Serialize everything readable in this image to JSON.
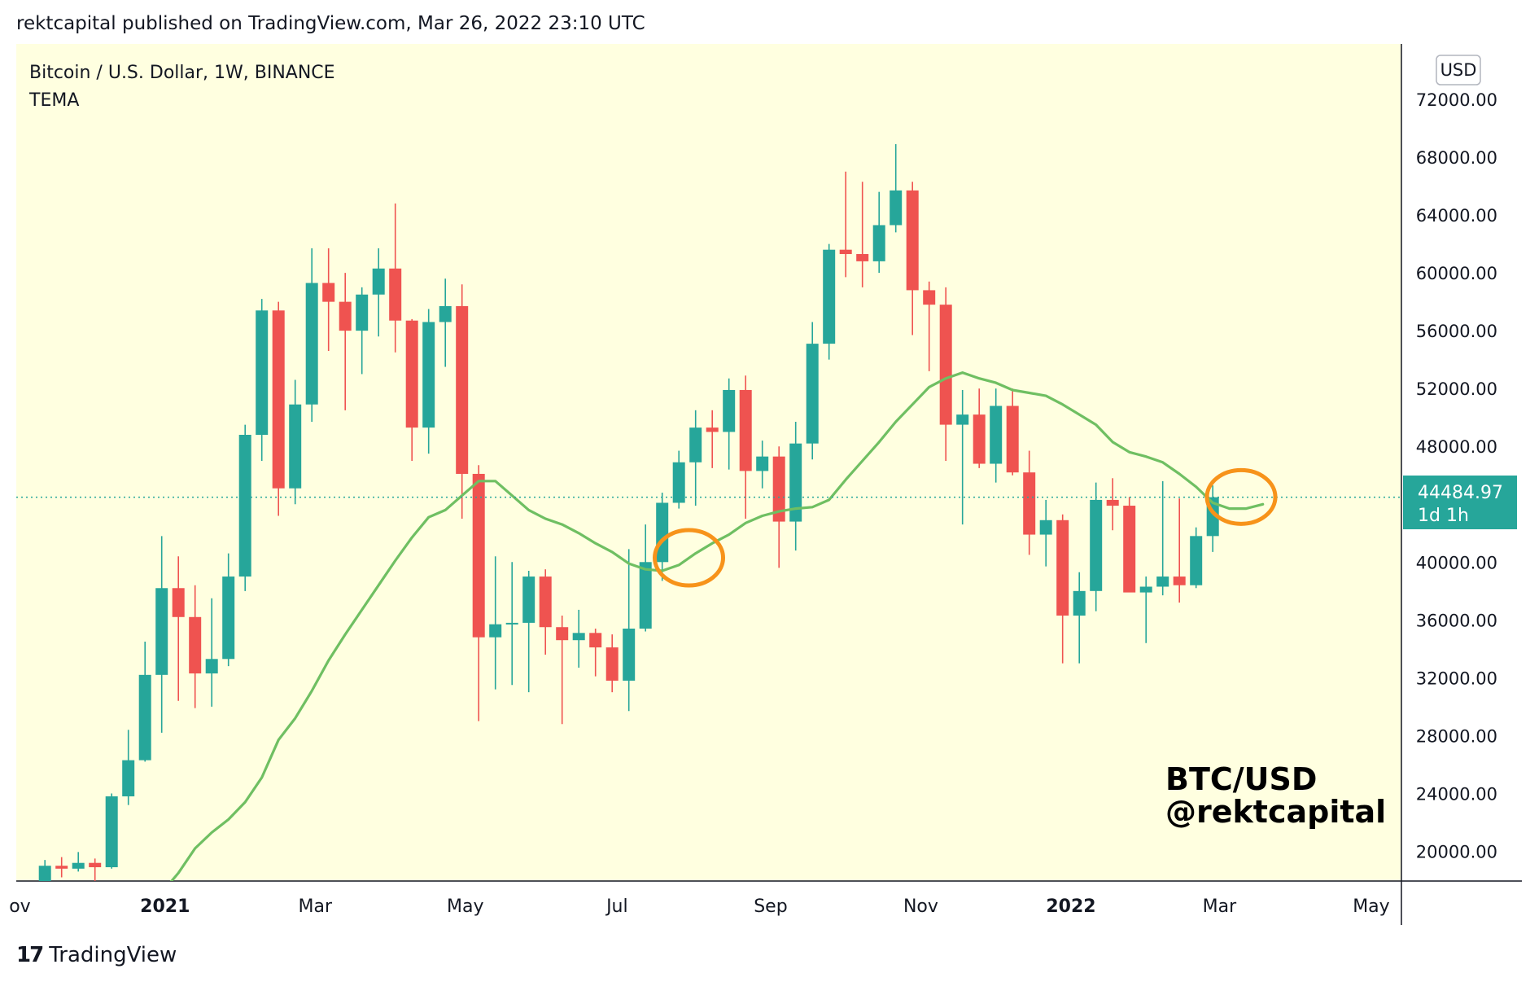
{
  "header": {
    "published_text": "rektcapital published on TradingView.com, Mar 26, 2022 23:10 UTC"
  },
  "legend": {
    "symbol": "Bitcoin / U.S. Dollar, 1W, BINANCE",
    "indicator": "TEMA"
  },
  "currency_badge": "USD",
  "watermark": {
    "line1": "BTC/USD",
    "line2": "@rektcapital"
  },
  "footer": {
    "logo_mark": "17",
    "brand": "TradingView"
  },
  "price_label": {
    "price": "44484.97",
    "countdown": "1d 1h"
  },
  "colors": {
    "background": "#ffffe0",
    "up": "#26a69a",
    "down": "#ef5350",
    "tema": "#6fbf62",
    "annotation": "#f7931a",
    "price_badge": "#26a69a"
  },
  "chart_data": {
    "type": "candlestick",
    "title": "Bitcoin / U.S. Dollar, 1W, BINANCE",
    "indicator": "TEMA",
    "ylim": [
      17000,
      75000
    ],
    "y_ticks": [
      {
        "v": 20000,
        "label": "20000.00"
      },
      {
        "v": 24000,
        "label": "24000.00"
      },
      {
        "v": 28000,
        "label": "28000.00"
      },
      {
        "v": 32000,
        "label": "32000.00"
      },
      {
        "v": 36000,
        "label": "36000.00"
      },
      {
        "v": 40000,
        "label": "40000.00"
      },
      {
        "v": 48000,
        "label": "48000.00"
      },
      {
        "v": 52000,
        "label": "52000.00"
      },
      {
        "v": 56000,
        "label": "56000.00"
      },
      {
        "v": 60000,
        "label": "60000.00"
      },
      {
        "v": 64000,
        "label": "64000.00"
      },
      {
        "v": 68000,
        "label": "68000.00"
      },
      {
        "v": 72000,
        "label": "72000.00"
      }
    ],
    "x_ticks": [
      {
        "i": -1.5,
        "label": "ov",
        "bold": false
      },
      {
        "i": 7.2,
        "label": "2021",
        "bold": true
      },
      {
        "i": 16.2,
        "label": "Mar",
        "bold": false
      },
      {
        "i": 25.2,
        "label": "May",
        "bold": false
      },
      {
        "i": 34.3,
        "label": "Jul",
        "bold": false
      },
      {
        "i": 43.5,
        "label": "Sep",
        "bold": false
      },
      {
        "i": 52.5,
        "label": "Nov",
        "bold": false
      },
      {
        "i": 61.5,
        "label": "2022",
        "bold": true
      },
      {
        "i": 70.4,
        "label": "Mar",
        "bold": false
      },
      {
        "i": 79.5,
        "label": "May",
        "bold": false
      }
    ],
    "last_price": 44484.97,
    "candles": [
      [
        17700,
        19400,
        17300,
        19000
      ],
      [
        19000,
        19600,
        18200,
        18800
      ],
      [
        18800,
        19950,
        18600,
        19200
      ],
      [
        19200,
        19500,
        17600,
        18900
      ],
      [
        18900,
        24000,
        18800,
        23800
      ],
      [
        23800,
        28400,
        23200,
        26300
      ],
      [
        26300,
        34500,
        26200,
        32200
      ],
      [
        32200,
        41800,
        28200,
        38200
      ],
      [
        38200,
        40400,
        30400,
        36200
      ],
      [
        36200,
        38400,
        29900,
        32300
      ],
      [
        32300,
        37500,
        30000,
        33300
      ],
      [
        33300,
        40600,
        32800,
        39000
      ],
      [
        39000,
        49500,
        38000,
        48800
      ],
      [
        48800,
        58200,
        47000,
        57400
      ],
      [
        57400,
        58000,
        43200,
        45100
      ],
      [
        45100,
        52600,
        44000,
        50900
      ],
      [
        50900,
        61700,
        49700,
        59300
      ],
      [
        59300,
        61700,
        54600,
        58000
      ],
      [
        58000,
        60000,
        50500,
        56000
      ],
      [
        56000,
        59000,
        53000,
        58500
      ],
      [
        58500,
        61700,
        55600,
        60300
      ],
      [
        60300,
        64800,
        54500,
        56700
      ],
      [
        56700,
        56800,
        47000,
        49300
      ],
      [
        49300,
        57500,
        47500,
        56600
      ],
      [
        56600,
        59600,
        53500,
        57700
      ],
      [
        57700,
        59200,
        43000,
        46100
      ],
      [
        46100,
        46700,
        29000,
        34800
      ],
      [
        34800,
        40400,
        31200,
        35700
      ],
      [
        35700,
        40000,
        31500,
        35800
      ],
      [
        35800,
        39400,
        31000,
        39000
      ],
      [
        39000,
        39500,
        33600,
        35500
      ],
      [
        35500,
        36300,
        28800,
        34600
      ],
      [
        34600,
        36700,
        32700,
        35100
      ],
      [
        35100,
        35400,
        32100,
        34100
      ],
      [
        34100,
        35000,
        31000,
        31800
      ],
      [
        31800,
        40900,
        29700,
        35400
      ],
      [
        35400,
        42600,
        35200,
        40000
      ],
      [
        40000,
        44800,
        38700,
        44100
      ],
      [
        44100,
        47700,
        43700,
        46900
      ],
      [
        46900,
        50500,
        43900,
        49300
      ],
      [
        49300,
        50500,
        46500,
        49000
      ],
      [
        49000,
        52700,
        46400,
        51900
      ],
      [
        51900,
        52900,
        43000,
        46300
      ],
      [
        46300,
        48400,
        45100,
        47300
      ],
      [
        47300,
        48000,
        39600,
        42800
      ],
      [
        42800,
        49700,
        40800,
        48200
      ],
      [
        48200,
        56600,
        47100,
        55100
      ],
      [
        55100,
        62000,
        54000,
        61600
      ],
      [
        61600,
        67000,
        59700,
        61300
      ],
      [
        61300,
        66300,
        59000,
        60800
      ],
      [
        60800,
        65600,
        60000,
        63300
      ],
      [
        63300,
        68900,
        62800,
        65700
      ],
      [
        65700,
        66300,
        55700,
        58800
      ],
      [
        58800,
        59400,
        53200,
        57800
      ],
      [
        57800,
        59000,
        47000,
        49500
      ],
      [
        49500,
        51900,
        42600,
        50200
      ],
      [
        50200,
        52000,
        46500,
        46800
      ],
      [
        46800,
        52000,
        45500,
        50800
      ],
      [
        50800,
        52000,
        46000,
        46200
      ],
      [
        46200,
        47700,
        40500,
        41900
      ],
      [
        41900,
        44300,
        39700,
        42900
      ],
      [
        42900,
        43300,
        33000,
        36300
      ],
      [
        36300,
        39300,
        33000,
        38000
      ],
      [
        38000,
        45500,
        36600,
        44300
      ],
      [
        44300,
        45800,
        42200,
        43900
      ],
      [
        43900,
        44500,
        38000,
        37900
      ],
      [
        37900,
        39000,
        34400,
        38300
      ],
      [
        38300,
        45600,
        37700,
        39000
      ],
      [
        39000,
        44400,
        37200,
        38400
      ],
      [
        38400,
        42400,
        38200,
        41800
      ],
      [
        41800,
        45300,
        40700,
        44484.97
      ]
    ],
    "tema": [
      [
        6.9,
        17000
      ],
      [
        8,
        18500
      ],
      [
        9,
        20200
      ],
      [
        10,
        21300
      ],
      [
        11,
        22200
      ],
      [
        12,
        23400
      ],
      [
        13,
        25100
      ],
      [
        14,
        27700
      ],
      [
        15,
        29200
      ],
      [
        16,
        31100
      ],
      [
        17,
        33200
      ],
      [
        18,
        35000
      ],
      [
        19,
        36700
      ],
      [
        20,
        38400
      ],
      [
        21,
        40100
      ],
      [
        22,
        41700
      ],
      [
        23,
        43100
      ],
      [
        24,
        43600
      ],
      [
        25,
        44600
      ],
      [
        26,
        45600
      ],
      [
        27,
        45600
      ],
      [
        28,
        44600
      ],
      [
        29,
        43600
      ],
      [
        30,
        43000
      ],
      [
        31,
        42600
      ],
      [
        32,
        42000
      ],
      [
        33,
        41300
      ],
      [
        34,
        40700
      ],
      [
        35,
        39900
      ],
      [
        36,
        39500
      ],
      [
        37,
        39400
      ],
      [
        38,
        39800
      ],
      [
        39,
        40600
      ],
      [
        40,
        41300
      ],
      [
        41,
        41900
      ],
      [
        42,
        42700
      ],
      [
        43,
        43200
      ],
      [
        44,
        43500
      ],
      [
        45,
        43700
      ],
      [
        46,
        43800
      ],
      [
        47,
        44300
      ],
      [
        48,
        45700
      ],
      [
        49,
        47000
      ],
      [
        50,
        48300
      ],
      [
        51,
        49700
      ],
      [
        52,
        50900
      ],
      [
        53,
        52100
      ],
      [
        54,
        52700
      ],
      [
        55,
        53100
      ],
      [
        56,
        52700
      ],
      [
        57,
        52400
      ],
      [
        58,
        51900
      ],
      [
        59,
        51700
      ],
      [
        60,
        51500
      ],
      [
        61,
        50900
      ],
      [
        62,
        50200
      ],
      [
        63,
        49500
      ],
      [
        64,
        48300
      ],
      [
        65,
        47600
      ],
      [
        66,
        47300
      ],
      [
        67,
        46900
      ],
      [
        68,
        46100
      ],
      [
        69,
        45200
      ],
      [
        70,
        44100
      ],
      [
        71,
        43700
      ],
      [
        72,
        43700
      ],
      [
        73,
        44000
      ]
    ],
    "annotations": [
      {
        "type": "circle",
        "i": 38.6,
        "v": 40300,
        "rx": 42,
        "ry": 34
      },
      {
        "type": "circle",
        "i": 71.7,
        "v": 44500,
        "rx": 42,
        "ry": 33
      }
    ]
  }
}
